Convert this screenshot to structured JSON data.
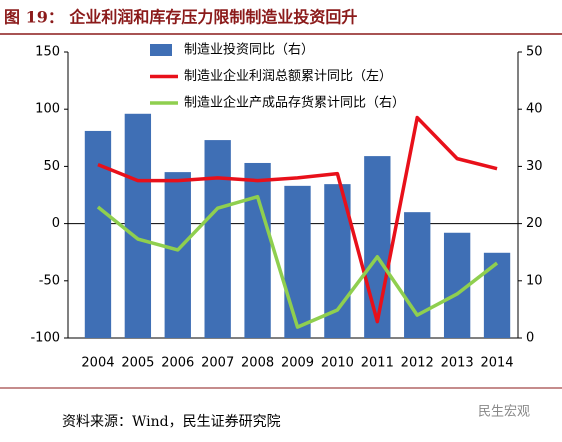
{
  "header": {
    "title": "图 19： 企业利润和库存压力限制制造业投资回升"
  },
  "chart_data": {
    "type": "bar-line",
    "categories": [
      "2004",
      "2005",
      "2006",
      "2007",
      "2008",
      "2009",
      "2010",
      "2011",
      "2012",
      "2013",
      "2014"
    ],
    "series": [
      {
        "name": "制造业投资同比（右）",
        "type": "bar",
        "axis": "y2",
        "color": "#3f6fb5",
        "values": [
          36.2,
          39.2,
          29.0,
          34.6,
          30.6,
          26.6,
          26.9,
          31.8,
          22.0,
          18.4,
          14.9
        ]
      },
      {
        "name": "制造业企业利润总额累计同比（左）",
        "type": "line",
        "axis": "y",
        "color": "#e8101a",
        "values": [
          51.6,
          37.6,
          37.6,
          40,
          37.6,
          40,
          43.7,
          -85.7,
          92.7,
          56.8,
          48
        ]
      },
      {
        "name": "制造业企业产成品存货累计同比（右）",
        "type": "line",
        "axis": "y2",
        "color": "#8fcf4f",
        "values": [
          22.9,
          17.3,
          15.4,
          22.7,
          24.7,
          1.9,
          4.9,
          14.2,
          4.0,
          7.7,
          13.1
        ]
      }
    ],
    "ylim": [
      -100,
      150
    ],
    "yticks": [
      -100,
      -50,
      0,
      50,
      100,
      150
    ],
    "y2lim": [
      0,
      50
    ],
    "y2ticks": [
      0,
      10,
      20,
      30,
      40,
      50
    ]
  },
  "footer": {
    "source": "资料来源：Wind，民生证券研究院",
    "watermark": "民生宏观"
  }
}
